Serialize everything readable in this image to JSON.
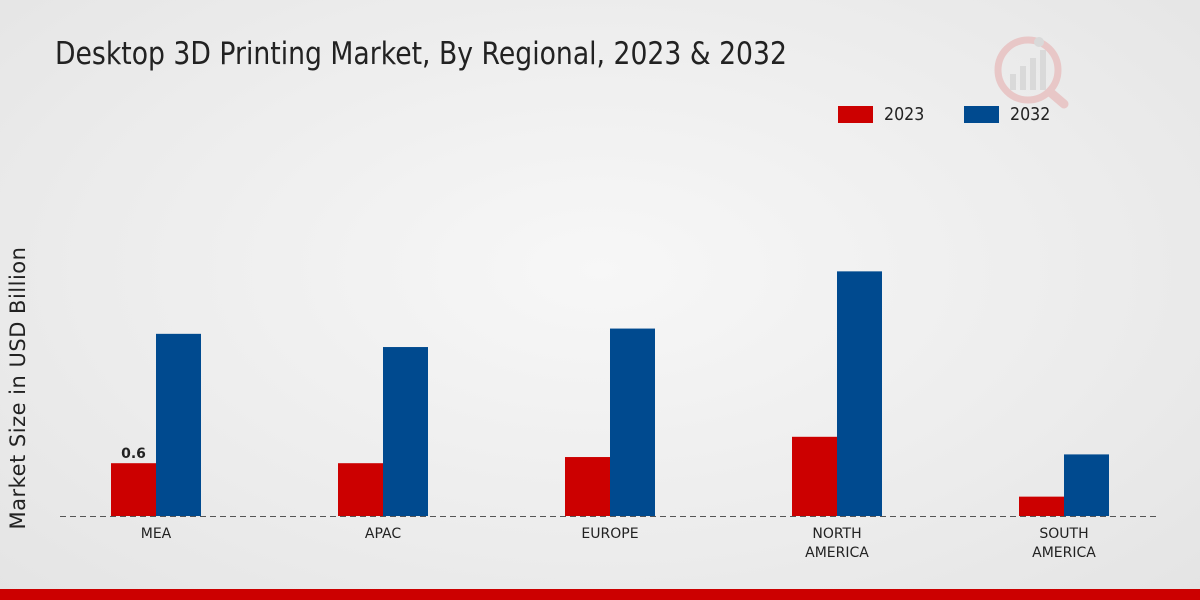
{
  "chart_data": {
    "type": "bar",
    "title": "Desktop 3D Printing Market, By Regional, 2023 & 2032",
    "xlabel": "",
    "ylabel": "Market Size in USD Billion",
    "categories": [
      "MEA",
      "APAC",
      "EUROPE",
      "NORTH AMERICA",
      "SOUTH AMERICA"
    ],
    "category_lines": [
      [
        "MEA"
      ],
      [
        "APAC"
      ],
      [
        "EUROPE"
      ],
      [
        "NORTH",
        "AMERICA"
      ],
      [
        "SOUTH",
        "AMERICA"
      ]
    ],
    "series": [
      {
        "name": "2023",
        "color": "#cc0000",
        "values": [
          0.6,
          0.6,
          0.67,
          0.9,
          0.22
        ]
      },
      {
        "name": "2032",
        "color": "#004a8f",
        "values": [
          2.07,
          1.92,
          2.13,
          2.78,
          0.7
        ]
      }
    ],
    "data_labels": [
      {
        "series": 0,
        "index": 0,
        "text": "0.6"
      }
    ],
    "ylim": [
      0,
      4.5
    ],
    "legend_position": "top-right",
    "grid": false
  }
}
